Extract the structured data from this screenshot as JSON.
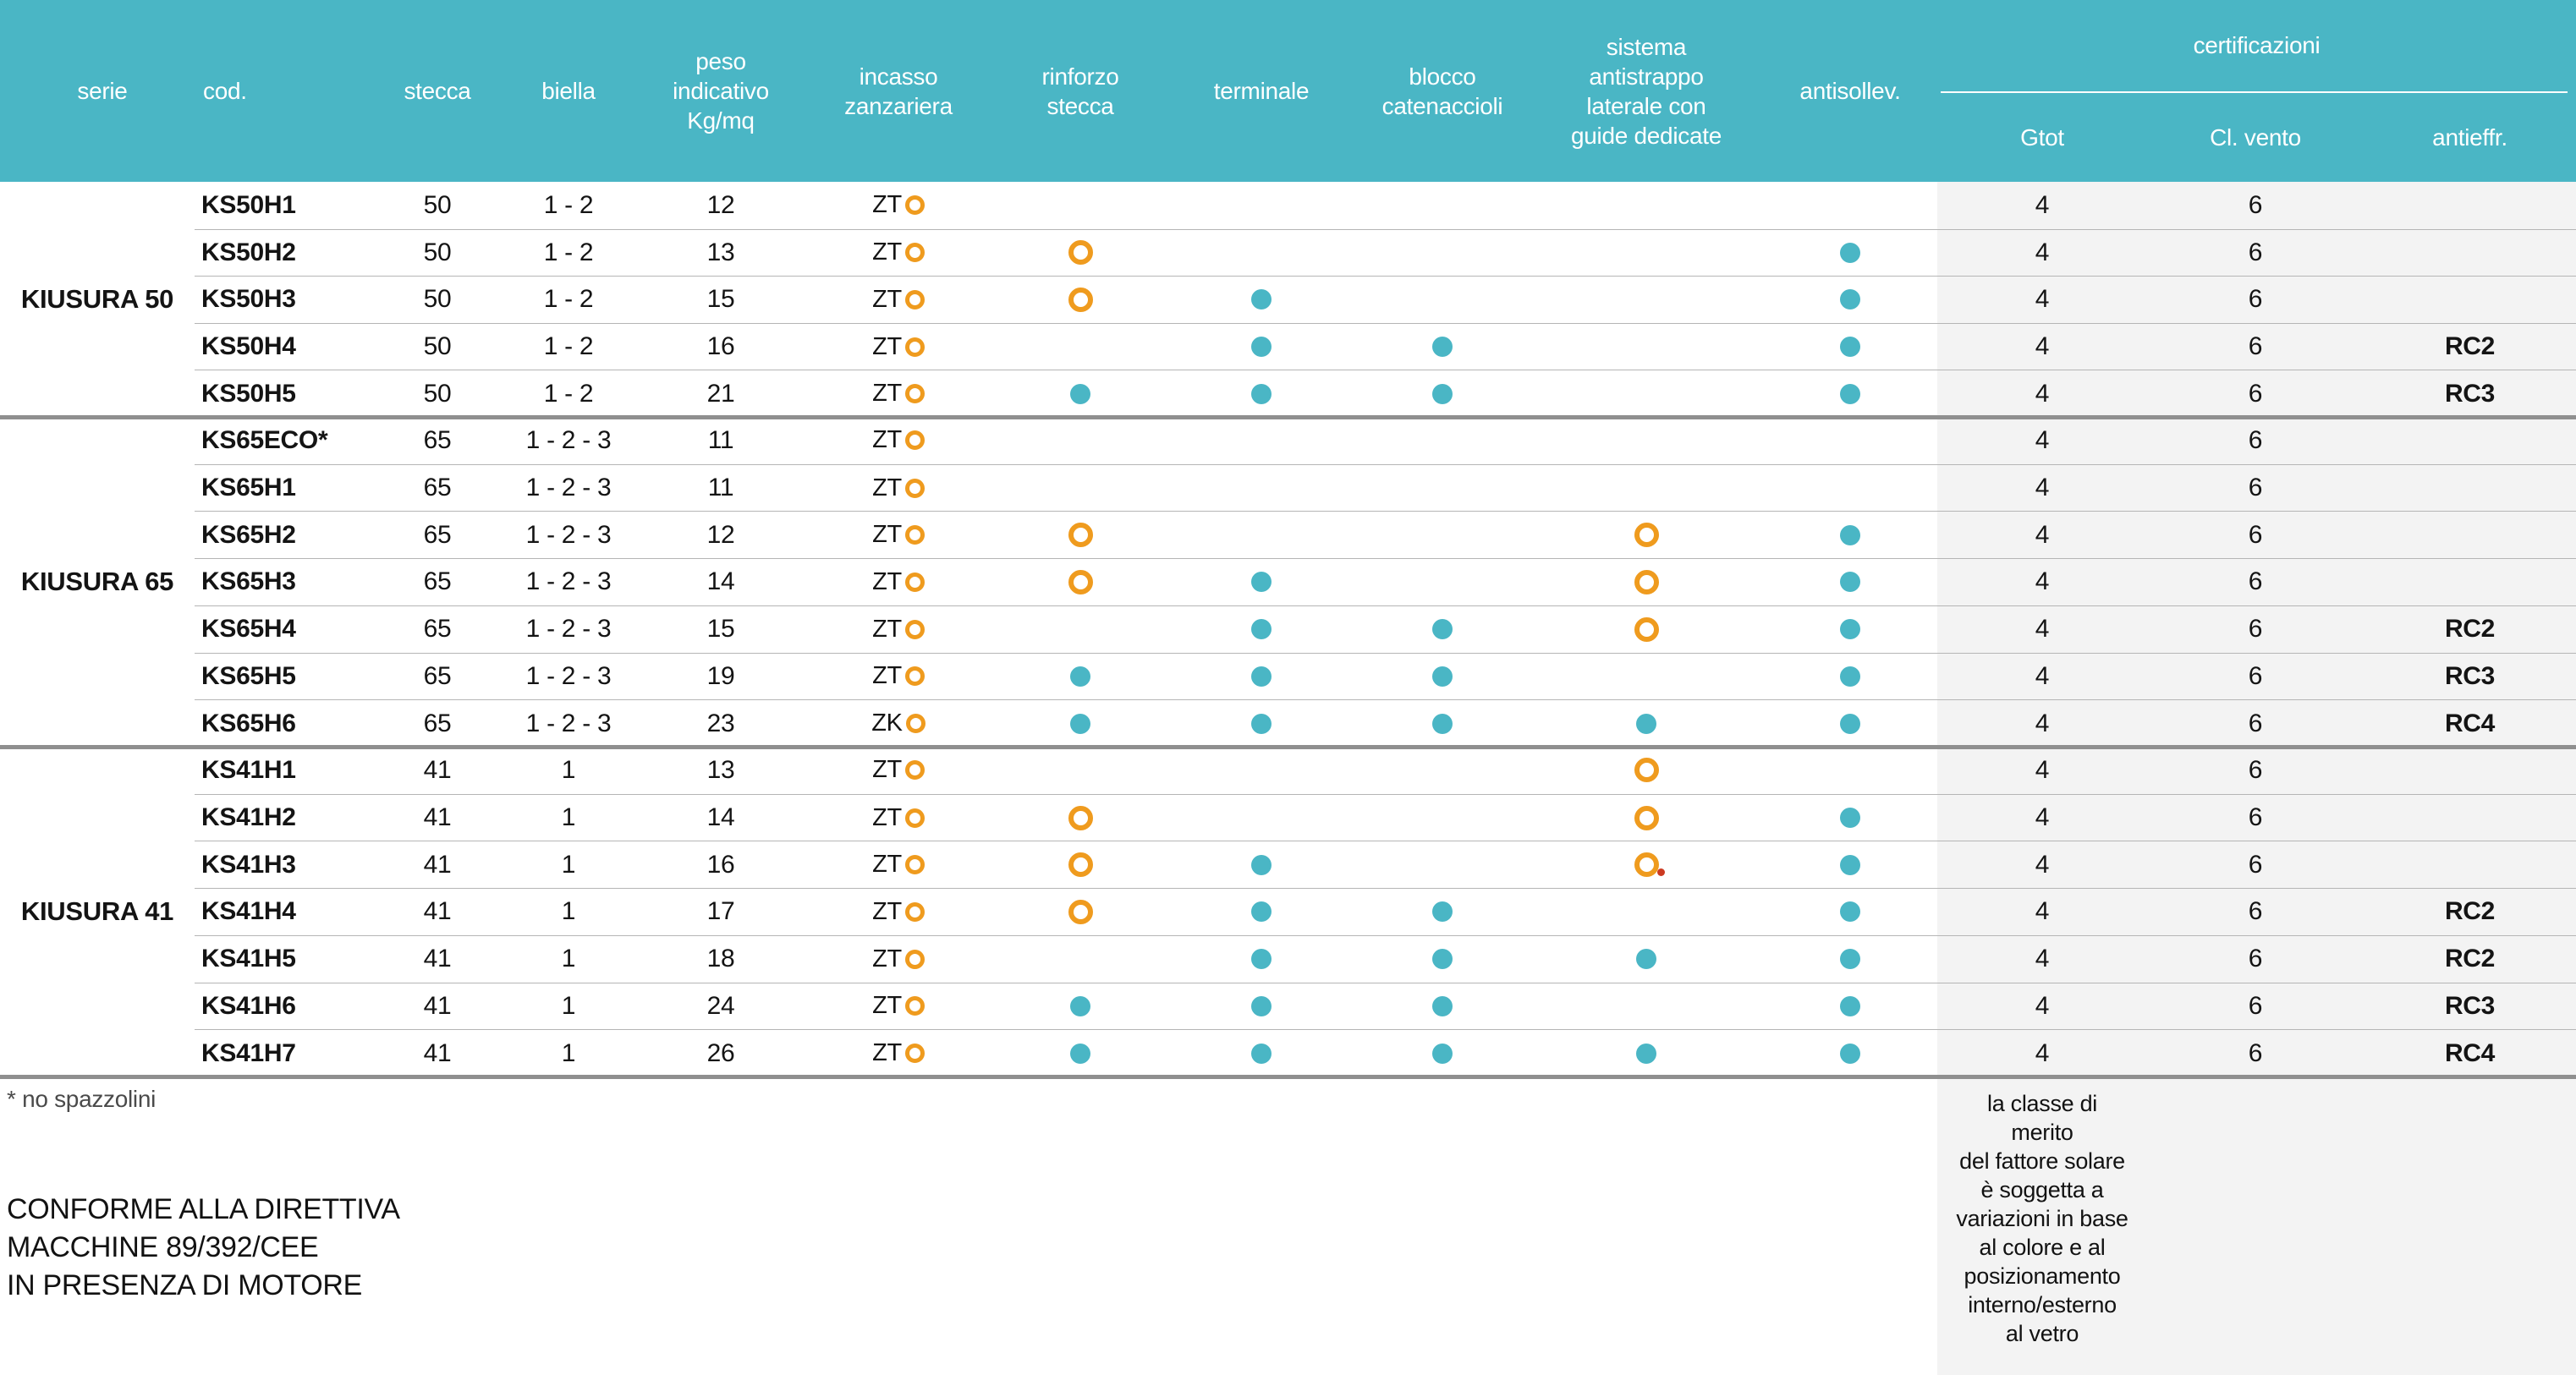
{
  "colors": {
    "accent_teal": "#4ab6c5",
    "accent_orange": "#ef9b1e",
    "red_mark": "#cc3a21",
    "cert_bg": "#f3f3f3"
  },
  "table": {
    "headers": {
      "serie": "serie",
      "cod": "cod.",
      "stecca": "stecca",
      "biella": "biella",
      "peso": "peso\nindicativo\nKg/mq",
      "incasso": "incasso\nzanzariera",
      "rinforzo": "rinforzo\nstecca",
      "terminale": "terminale",
      "blocco": "blocco\ncatenaccioli",
      "sistema": "sistema\nantistrappo\nlaterale con\nguide dedicate",
      "antisollev": "antisollev.",
      "certificazioni": "certificazioni",
      "gtot": "Gtot",
      "vento": "Cl. vento",
      "antieffr": "antieffr."
    },
    "groups": [
      {
        "serie": "KIUSURA 50",
        "rows": [
          {
            "cod": "KS50H1",
            "stecca": "50",
            "biella": "1 - 2",
            "peso": "12",
            "incasso": "ZT",
            "rinforzo": "",
            "terminale": "",
            "blocco": "",
            "sistema": "",
            "antisollev": "",
            "gtot": "4",
            "vento": "6",
            "antieffr": ""
          },
          {
            "cod": "KS50H2",
            "stecca": "50",
            "biella": "1 - 2",
            "peso": "13",
            "incasso": "ZT",
            "rinforzo": "ring",
            "terminale": "",
            "blocco": "",
            "sistema": "",
            "antisollev": "dot",
            "gtot": "4",
            "vento": "6",
            "antieffr": ""
          },
          {
            "cod": "KS50H3",
            "stecca": "50",
            "biella": "1 - 2",
            "peso": "15",
            "incasso": "ZT",
            "rinforzo": "ring",
            "terminale": "dot",
            "blocco": "",
            "sistema": "",
            "antisollev": "dot",
            "gtot": "4",
            "vento": "6",
            "antieffr": ""
          },
          {
            "cod": "KS50H4",
            "stecca": "50",
            "biella": "1 - 2",
            "peso": "16",
            "incasso": "ZT",
            "rinforzo": "",
            "terminale": "dot",
            "blocco": "dot",
            "sistema": "",
            "antisollev": "dot",
            "gtot": "4",
            "vento": "6",
            "antieffr": "RC2"
          },
          {
            "cod": "KS50H5",
            "stecca": "50",
            "biella": "1 - 2",
            "peso": "21",
            "incasso": "ZT",
            "rinforzo": "dot",
            "terminale": "dot",
            "blocco": "dot",
            "sistema": "",
            "antisollev": "dot",
            "gtot": "4",
            "vento": "6",
            "antieffr": "RC3"
          }
        ]
      },
      {
        "serie": "KIUSURA 65",
        "rows": [
          {
            "cod": "KS65ECO*",
            "stecca": "65",
            "biella": "1 - 2 - 3",
            "peso": "11",
            "incasso": "ZT",
            "rinforzo": "",
            "terminale": "",
            "blocco": "",
            "sistema": "",
            "antisollev": "",
            "gtot": "4",
            "vento": "6",
            "antieffr": ""
          },
          {
            "cod": "KS65H1",
            "stecca": "65",
            "biella": "1 - 2 - 3",
            "peso": "11",
            "incasso": "ZT",
            "rinforzo": "",
            "terminale": "",
            "blocco": "",
            "sistema": "",
            "antisollev": "",
            "gtot": "4",
            "vento": "6",
            "antieffr": ""
          },
          {
            "cod": "KS65H2",
            "stecca": "65",
            "biella": "1 - 2 - 3",
            "peso": "12",
            "incasso": "ZT",
            "rinforzo": "ring",
            "terminale": "",
            "blocco": "",
            "sistema": "ring",
            "antisollev": "dot",
            "gtot": "4",
            "vento": "6",
            "antieffr": ""
          },
          {
            "cod": "KS65H3",
            "stecca": "65",
            "biella": "1 - 2 - 3",
            "peso": "14",
            "incasso": "ZT",
            "rinforzo": "ring",
            "terminale": "dot",
            "blocco": "",
            "sistema": "ring",
            "antisollev": "dot",
            "gtot": "4",
            "vento": "6",
            "antieffr": ""
          },
          {
            "cod": "KS65H4",
            "stecca": "65",
            "biella": "1 - 2 - 3",
            "peso": "15",
            "incasso": "ZT",
            "rinforzo": "",
            "terminale": "dot",
            "blocco": "dot",
            "sistema": "ring",
            "antisollev": "dot",
            "gtot": "4",
            "vento": "6",
            "antieffr": "RC2"
          },
          {
            "cod": "KS65H5",
            "stecca": "65",
            "biella": "1 - 2 - 3",
            "peso": "19",
            "incasso": "ZT",
            "rinforzo": "dot",
            "terminale": "dot",
            "blocco": "dot",
            "sistema": "",
            "antisollev": "dot",
            "gtot": "4",
            "vento": "6",
            "antieffr": "RC3"
          },
          {
            "cod": "KS65H6",
            "stecca": "65",
            "biella": "1 - 2 - 3",
            "peso": "23",
            "incasso": "ZK",
            "rinforzo": "dot",
            "terminale": "dot",
            "blocco": "dot",
            "sistema": "dot",
            "antisollev": "dot",
            "gtot": "4",
            "vento": "6",
            "antieffr": "RC4"
          }
        ]
      },
      {
        "serie": "KIUSURA 41",
        "rows": [
          {
            "cod": "KS41H1",
            "stecca": "41",
            "biella": "1",
            "peso": "13",
            "incasso": "ZT",
            "rinforzo": "",
            "terminale": "",
            "blocco": "",
            "sistema": "ring",
            "antisollev": "",
            "gtot": "4",
            "vento": "6",
            "antieffr": ""
          },
          {
            "cod": "KS41H2",
            "stecca": "41",
            "biella": "1",
            "peso": "14",
            "incasso": "ZT",
            "rinforzo": "ring",
            "terminale": "",
            "blocco": "",
            "sistema": "ring",
            "antisollev": "dot",
            "gtot": "4",
            "vento": "6",
            "antieffr": ""
          },
          {
            "cod": "KS41H3",
            "stecca": "41",
            "biella": "1",
            "peso": "16",
            "incasso": "ZT",
            "rinforzo": "ring",
            "terminale": "dot",
            "blocco": "",
            "sistema": "ring_red",
            "antisollev": "dot",
            "gtot": "4",
            "vento": "6",
            "antieffr": ""
          },
          {
            "cod": "KS41H4",
            "stecca": "41",
            "biella": "1",
            "peso": "17",
            "incasso": "ZT",
            "rinforzo": "ring",
            "terminale": "dot",
            "blocco": "dot",
            "sistema": "",
            "antisollev": "dot",
            "gtot": "4",
            "vento": "6",
            "antieffr": "RC2"
          },
          {
            "cod": "KS41H5",
            "stecca": "41",
            "biella": "1",
            "peso": "18",
            "incasso": "ZT",
            "rinforzo": "",
            "terminale": "dot",
            "blocco": "dot",
            "sistema": "dot",
            "antisollev": "dot",
            "gtot": "4",
            "vento": "6",
            "antieffr": "RC2"
          },
          {
            "cod": "KS41H6",
            "stecca": "41",
            "biella": "1",
            "peso": "24",
            "incasso": "ZT",
            "rinforzo": "dot",
            "terminale": "dot",
            "blocco": "dot",
            "sistema": "",
            "antisollev": "dot",
            "gtot": "4",
            "vento": "6",
            "antieffr": "RC3"
          },
          {
            "cod": "KS41H7",
            "stecca": "41",
            "biella": "1",
            "peso": "26",
            "incasso": "ZT",
            "rinforzo": "dot",
            "terminale": "dot",
            "blocco": "dot",
            "sistema": "dot",
            "antisollev": "dot",
            "gtot": "4",
            "vento": "6",
            "antieffr": "RC4"
          }
        ]
      }
    ]
  },
  "footer": {
    "note_asterisk": "* no spazzolini",
    "directive": "CONFORME ALLA DIRETTIVA\nMACCHINE 89/392/CEE\nIN PRESENZA DI MOTORE",
    "solar_note": "la classe di\nmerito\ndel fattore solare\nè soggetta a\nvariazioni in base\nal colore e al\nposizionamento\ninterno/esterno\nal vetro"
  }
}
